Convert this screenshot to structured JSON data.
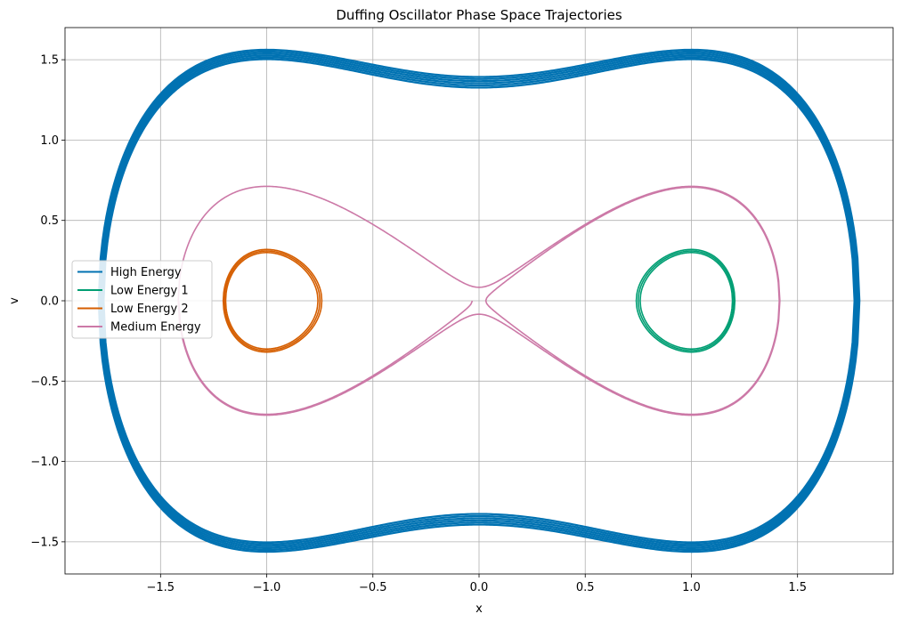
{
  "chart_data": {
    "type": "line",
    "title": "Duffing Oscillator Phase Space Trajectories",
    "xlabel": "x",
    "ylabel": "v",
    "xlim": [
      -1.95,
      1.95
    ],
    "ylim": [
      -1.7,
      1.7
    ],
    "xticks": [
      -1.5,
      -1.0,
      -0.5,
      0.0,
      0.5,
      1.0,
      1.5
    ],
    "xtick_labels": [
      "−1.5",
      "−1.0",
      "−0.5",
      "0.0",
      "0.5",
      "1.0",
      "1.5"
    ],
    "yticks": [
      -1.5,
      -1.0,
      -0.5,
      0.0,
      0.5,
      1.0,
      1.5
    ],
    "ytick_labels": [
      "−1.5",
      "−1.0",
      "−0.5",
      "0.0",
      "0.5",
      "1.0",
      "1.5"
    ],
    "grid": true,
    "legend_position": "center-left",
    "series": [
      {
        "name": "High Energy",
        "color": "#0072B2",
        "kind": "orbit-outer",
        "energy_approx": 0.92,
        "energy_range": [
          0.88,
          0.97
        ],
        "x_extent": [
          -1.78,
          1.78
        ],
        "v_extent": [
          -1.55,
          1.55
        ]
      },
      {
        "name": "Low Energy 1",
        "color": "#009E73",
        "kind": "well-right",
        "center": [
          1.0,
          0.0
        ],
        "x_extent": [
          0.76,
          1.19
        ],
        "v_extent": [
          -0.3,
          0.3
        ]
      },
      {
        "name": "Low Energy 2",
        "color": "#D55E00",
        "kind": "well-left",
        "center": [
          -1.0,
          0.0
        ],
        "x_extent": [
          -1.19,
          -0.76
        ],
        "v_extent": [
          -0.3,
          0.3
        ]
      },
      {
        "name": "Medium Energy",
        "color": "#CC79A7",
        "kind": "figure-eight",
        "x_extent": [
          -1.41,
          1.41
        ],
        "v_extent": [
          -0.71,
          0.71
        ]
      }
    ]
  }
}
